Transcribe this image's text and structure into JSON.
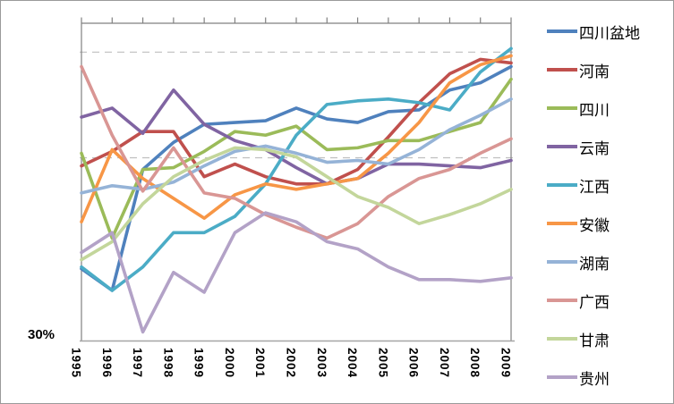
{
  "y_axis": {
    "min_label": "30%"
  },
  "chart_data": {
    "type": "line",
    "title": "",
    "xlabel": "",
    "ylabel": "",
    "x": [
      "1995",
      "1996",
      "1997",
      "1998",
      "1999",
      "2000",
      "2001",
      "2002",
      "2003",
      "2004",
      "2005",
      "2006",
      "2007",
      "2008",
      "2009"
    ],
    "ylim": [
      30,
      47.6
    ],
    "y_unit": "percent",
    "y_min_tick_label": "30%",
    "reference_lines_pct": [
      46.0,
      40.15
    ],
    "grid": "two dashed horizontal reference lines only",
    "legend_position": "right",
    "series": [
      {
        "name": "四川盆地",
        "color": "#4F81BD",
        "values": [
          34.0,
          32.8,
          39.5,
          41.0,
          42.0,
          42.1,
          42.2,
          42.9,
          42.3,
          42.1,
          42.7,
          42.8,
          43.9,
          44.3,
          45.2
        ]
      },
      {
        "name": "河南",
        "color": "#C0504D",
        "values": [
          39.7,
          40.5,
          41.6,
          41.6,
          39.1,
          39.8,
          39.1,
          38.7,
          38.7,
          39.5,
          41.3,
          43.2,
          44.8,
          45.6,
          45.4
        ]
      },
      {
        "name": "四川",
        "color": "#9BBB59",
        "values": [
          40.4,
          35.7,
          39.5,
          39.6,
          40.5,
          41.6,
          41.4,
          41.9,
          40.6,
          40.7,
          41.1,
          41.1,
          41.6,
          42.1,
          44.5
        ]
      },
      {
        "name": "云南",
        "color": "#8064A2",
        "values": [
          42.4,
          42.9,
          41.5,
          43.9,
          42.0,
          41.1,
          40.6,
          39.6,
          38.7,
          39.0,
          39.8,
          39.8,
          39.7,
          39.6,
          40.0
        ]
      },
      {
        "name": "江西",
        "color": "#4BACC6",
        "values": [
          34.1,
          32.8,
          34.1,
          36.0,
          36.0,
          36.9,
          38.7,
          41.4,
          43.1,
          43.3,
          43.4,
          43.2,
          42.8,
          44.9,
          46.2
        ]
      },
      {
        "name": "安徽",
        "color": "#F79646",
        "values": [
          36.6,
          40.6,
          39.0,
          37.9,
          36.8,
          38.1,
          38.7,
          38.4,
          38.7,
          39.0,
          40.4,
          42.1,
          44.3,
          45.3,
          45.8
        ]
      },
      {
        "name": "湖南",
        "color": "#95B3D7",
        "values": [
          38.2,
          38.6,
          38.4,
          38.8,
          39.7,
          40.5,
          40.8,
          40.4,
          39.9,
          40.0,
          39.8,
          40.6,
          41.7,
          42.5,
          43.4
        ]
      },
      {
        "name": "广西",
        "color": "#D99694",
        "values": [
          45.2,
          41.4,
          38.3,
          40.7,
          38.2,
          37.9,
          37.0,
          36.3,
          35.7,
          36.5,
          38.0,
          39.0,
          39.5,
          40.4,
          41.2
        ]
      },
      {
        "name": "甘肃",
        "color": "#C3D69B",
        "values": [
          34.5,
          35.5,
          37.6,
          39.1,
          40.0,
          40.7,
          40.6,
          40.2,
          39.1,
          38.0,
          37.4,
          36.5,
          37.0,
          37.6,
          38.4
        ]
      },
      {
        "name": "贵州",
        "color": "#B3A2C7",
        "values": [
          34.9,
          36.0,
          30.5,
          33.8,
          32.7,
          36.0,
          37.1,
          36.6,
          35.5,
          35.1,
          34.1,
          33.4,
          33.4,
          33.3,
          33.5
        ]
      }
    ]
  }
}
